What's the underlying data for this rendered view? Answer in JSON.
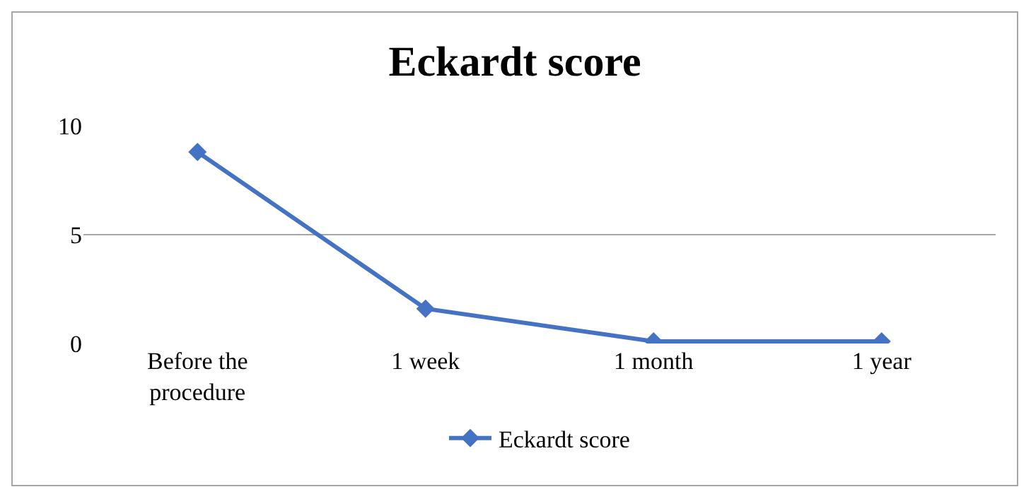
{
  "chart_data": {
    "type": "line",
    "title": "Eckardt score",
    "categories": [
      "Before the procedure",
      "1 week",
      "1 month",
      "1 year"
    ],
    "series": [
      {
        "name": "Eckardt score",
        "color": "#4472c4",
        "values": [
          8.8,
          1.6,
          0.1,
          0.1
        ]
      }
    ],
    "ylim": [
      0,
      10
    ],
    "yticks": [
      0,
      5,
      10
    ],
    "grid": "y",
    "legend": "bottom",
    "marker": "diamond",
    "line_style": "solid"
  }
}
